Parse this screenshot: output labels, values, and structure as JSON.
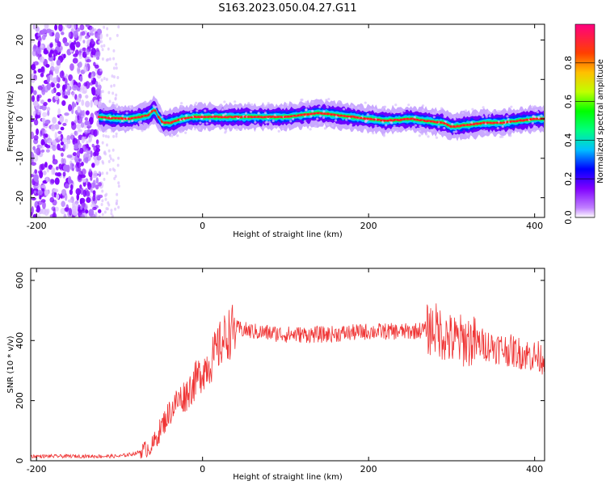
{
  "title": "S163.2023.050.04.27.G11",
  "chart_data": [
    {
      "type": "heatmap",
      "xlabel": "Height of straight line (km)",
      "ylabel": "Frequency (Hz)",
      "xlim": [
        -207,
        412
      ],
      "ylim": [
        -25,
        24
      ],
      "xticks": [
        -200,
        0,
        200,
        400
      ],
      "yticks": [
        -20,
        -10,
        0,
        10,
        20
      ],
      "colorbar": {
        "label": "Normalized spectral amplitude",
        "range": [
          0,
          1
        ],
        "ticks": [
          0.0,
          0.2,
          0.4,
          0.6,
          0.8
        ],
        "colors": [
          "#ffffff",
          "#c080ff",
          "#8000ff",
          "#0000ff",
          "#00c0ff",
          "#00ff80",
          "#00ff00",
          "#c0ff00",
          "#ffc000",
          "#ff4000",
          "#ff0080"
        ]
      },
      "ridge": {
        "x": [
          -125,
          -110,
          -90,
          -75,
          -65,
          -58,
          -53,
          -48,
          -40,
          -25,
          -10,
          10,
          40,
          70,
          100,
          120,
          140,
          160,
          180,
          200,
          220,
          250,
          270,
          290,
          300,
          320,
          340,
          360,
          380,
          400,
          412
        ],
        "y": [
          0.5,
          0.2,
          0.0,
          0.5,
          1.0,
          2.5,
          0.5,
          -1.0,
          -1.0,
          0.0,
          0.5,
          0.5,
          0.5,
          0.5,
          0.5,
          1.0,
          1.5,
          1.0,
          0.5,
          0.0,
          -0.5,
          0.0,
          -0.5,
          -1.0,
          -2.0,
          -1.5,
          -1.0,
          -1.0,
          -0.5,
          0.0,
          0.0
        ]
      }
    },
    {
      "type": "line",
      "xlabel": "Height of straight line (km)",
      "ylabel": "SNR (10 * v/v)",
      "xlim": [
        -207,
        412
      ],
      "ylim": [
        0,
        640
      ],
      "xticks": [
        -200,
        0,
        200,
        400
      ],
      "yticks": [
        0,
        200,
        400,
        600
      ],
      "color": "#ef3434",
      "series": [
        {
          "x": [
            -207,
            -150,
            -100,
            -80,
            -60,
            -50,
            -40,
            -30,
            -20,
            -10,
            0,
            10,
            20,
            30,
            40,
            60,
            100,
            150,
            200,
            250,
            280,
            300,
            320,
            350,
            380,
            412
          ],
          "values": [
            15,
            15,
            15,
            25,
            50,
            110,
            160,
            200,
            220,
            260,
            300,
            330,
            380,
            420,
            440,
            430,
            420,
            420,
            430,
            430,
            440,
            400,
            400,
            380,
            360,
            340
          ]
        }
      ]
    }
  ]
}
